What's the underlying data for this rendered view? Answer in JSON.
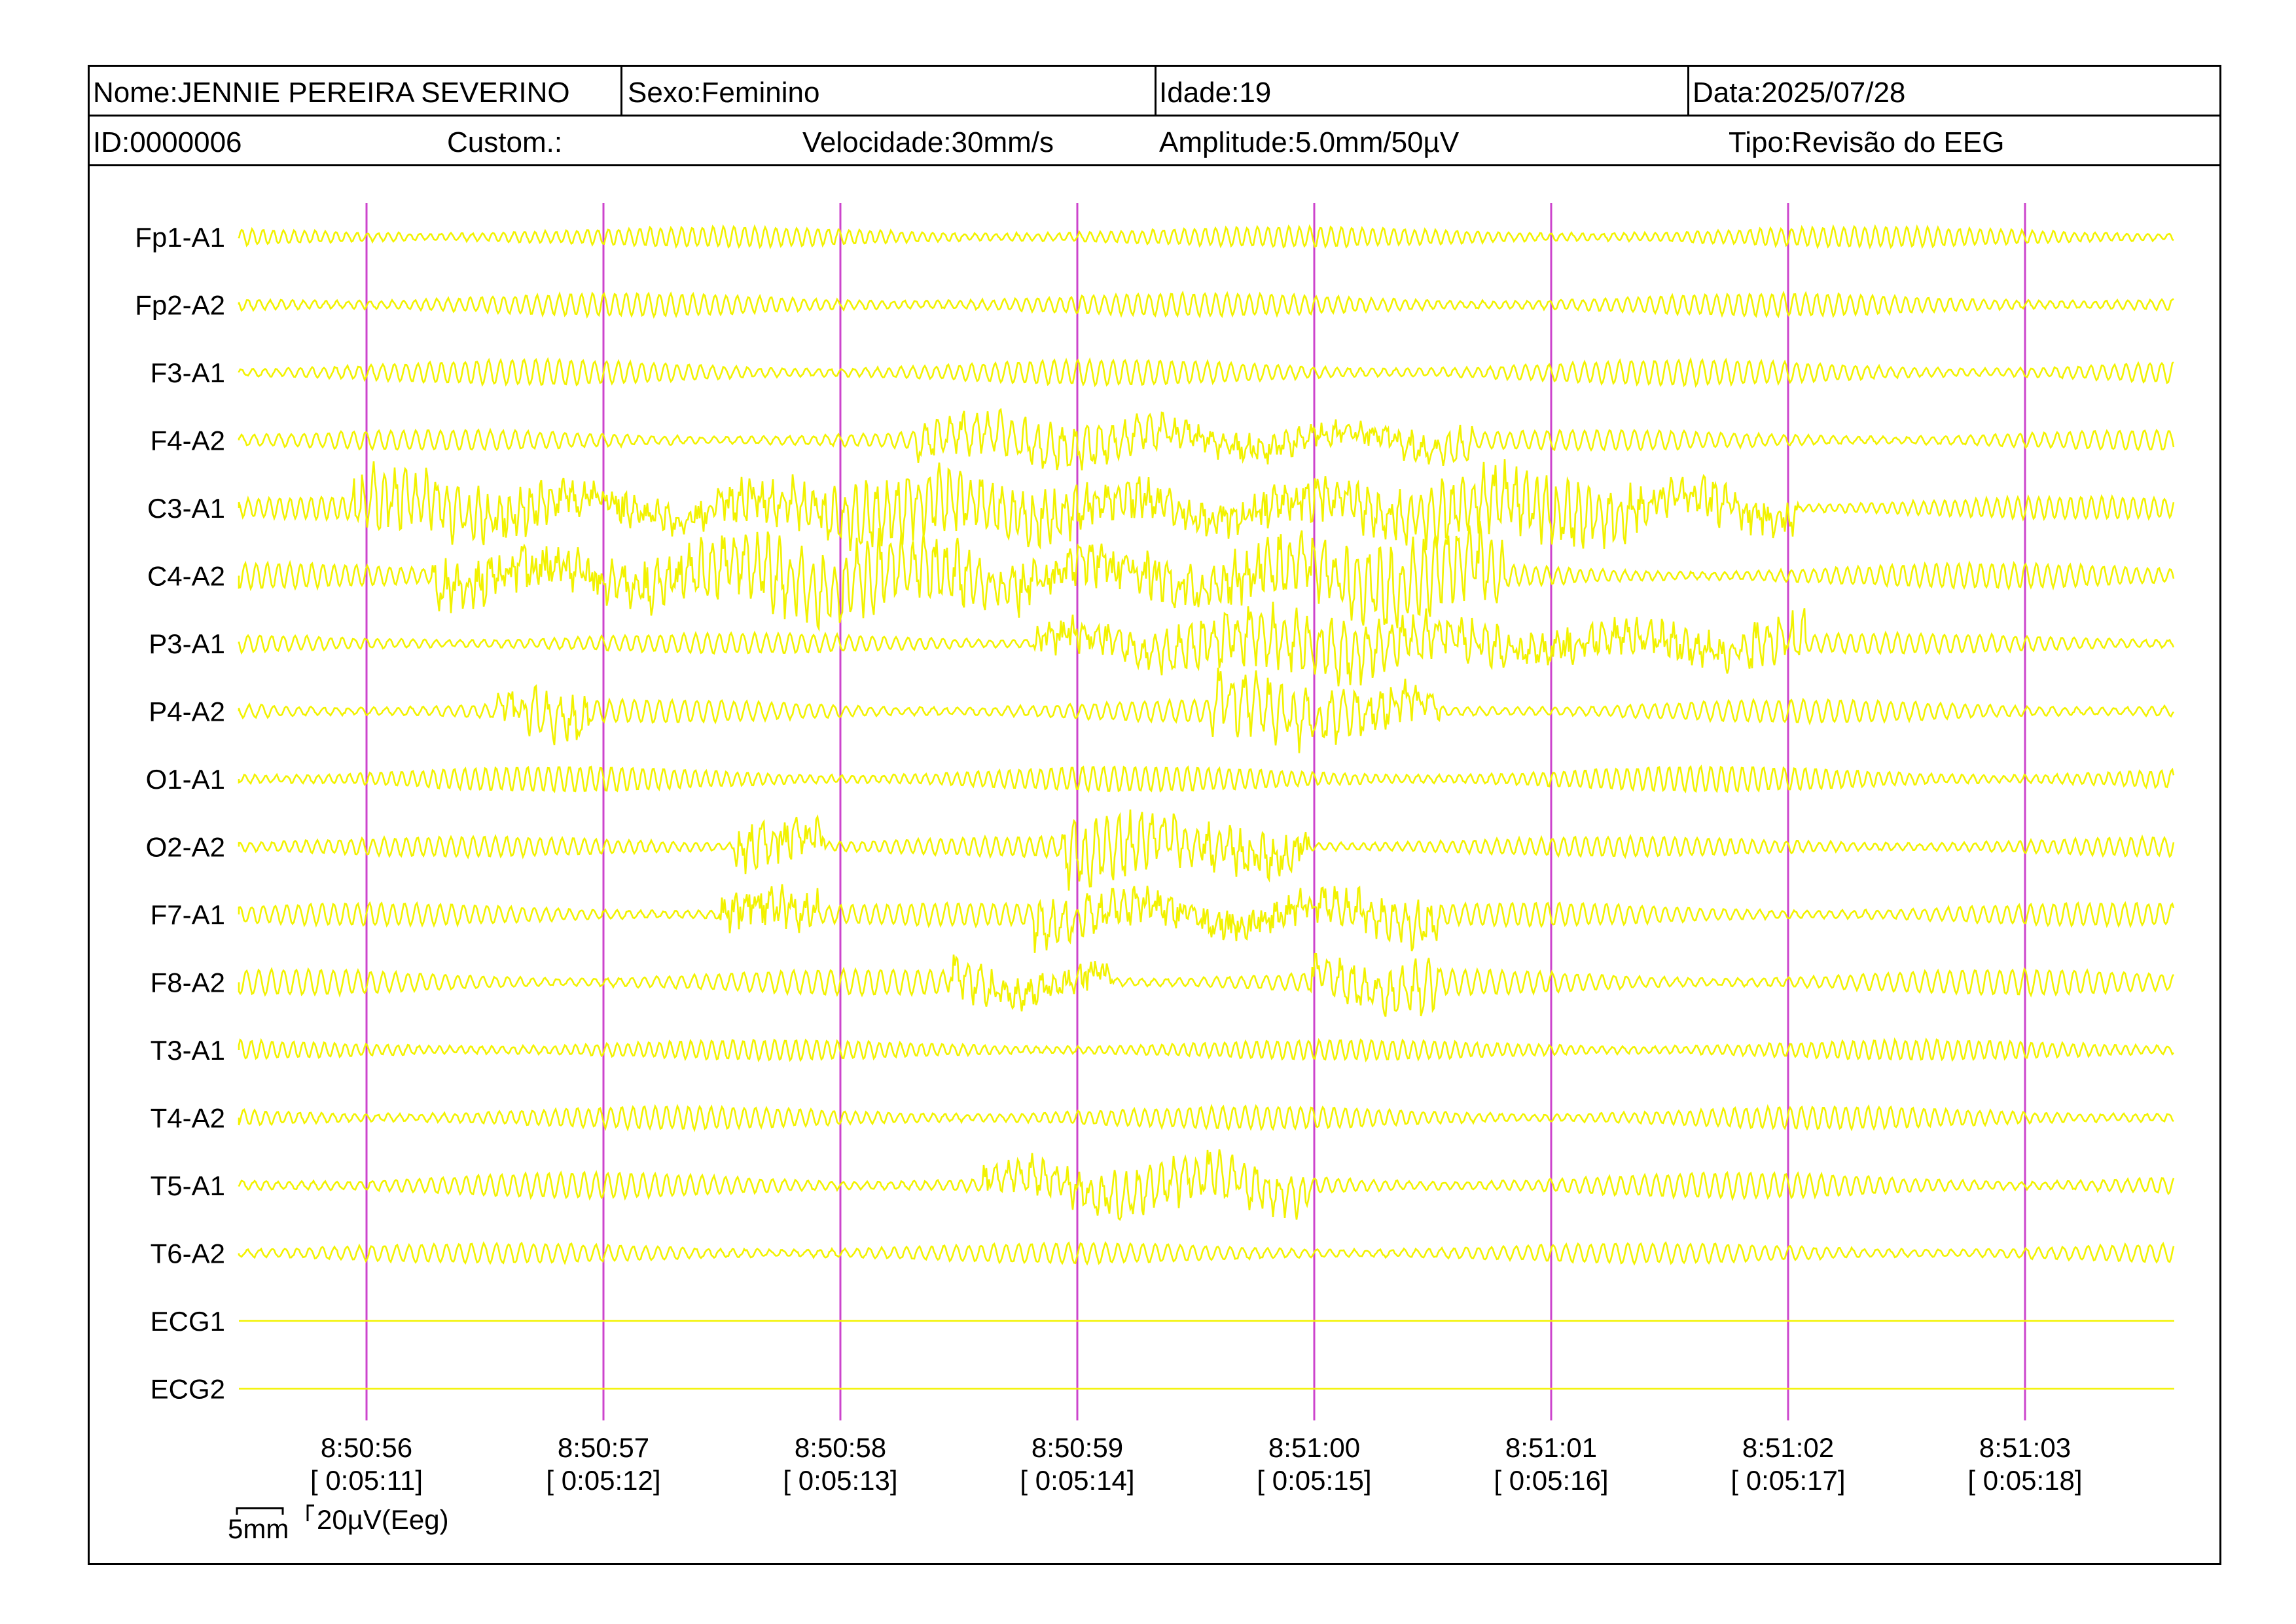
{
  "header": {
    "name": "Nome:JENNIE PEREIRA SEVERINO",
    "sex": "Sexo:Feminino",
    "age": "Idade:19",
    "date": "Data:2025/07/28",
    "id": "ID:0000006",
    "custom": "Custom.:",
    "speed": "Velocidade:30mm/s",
    "amplitude": "Amplitude:5.0mm/50µV",
    "type": "Tipo:Revisão do EEG"
  },
  "colors": {
    "trace": "#f2f200",
    "marker": "#cc44cc",
    "ink": "#000000"
  },
  "chart_data": {
    "type": "line",
    "channels": [
      "Fp1-A1",
      "Fp2-A2",
      "F3-A1",
      "F4-A2",
      "C3-A1",
      "C4-A2",
      "P3-A1",
      "P4-A2",
      "O1-A1",
      "O2-A2",
      "F7-A1",
      "F8-A2",
      "T3-A1",
      "T4-A2",
      "T5-A1",
      "T6-A2",
      "ECG1",
      "ECG2"
    ],
    "time_ticks": [
      {
        "clock": "8:50:56",
        "elapsed": "[ 0:05:11]"
      },
      {
        "clock": "8:50:57",
        "elapsed": "[ 0:05:12]"
      },
      {
        "clock": "8:50:58",
        "elapsed": "[ 0:05:13]"
      },
      {
        "clock": "8:50:59",
        "elapsed": "[ 0:05:14]"
      },
      {
        "clock": "8:51:00",
        "elapsed": "[ 0:05:15]"
      },
      {
        "clock": "8:51:01",
        "elapsed": "[ 0:05:16]"
      },
      {
        "clock": "8:51:02",
        "elapsed": "[ 0:05:17]"
      },
      {
        "clock": "8:51:03",
        "elapsed": "[ 0:05:18]"
      }
    ],
    "scale": {
      "time": "5mm",
      "amplitude": "20µV(Eeg)"
    }
  }
}
